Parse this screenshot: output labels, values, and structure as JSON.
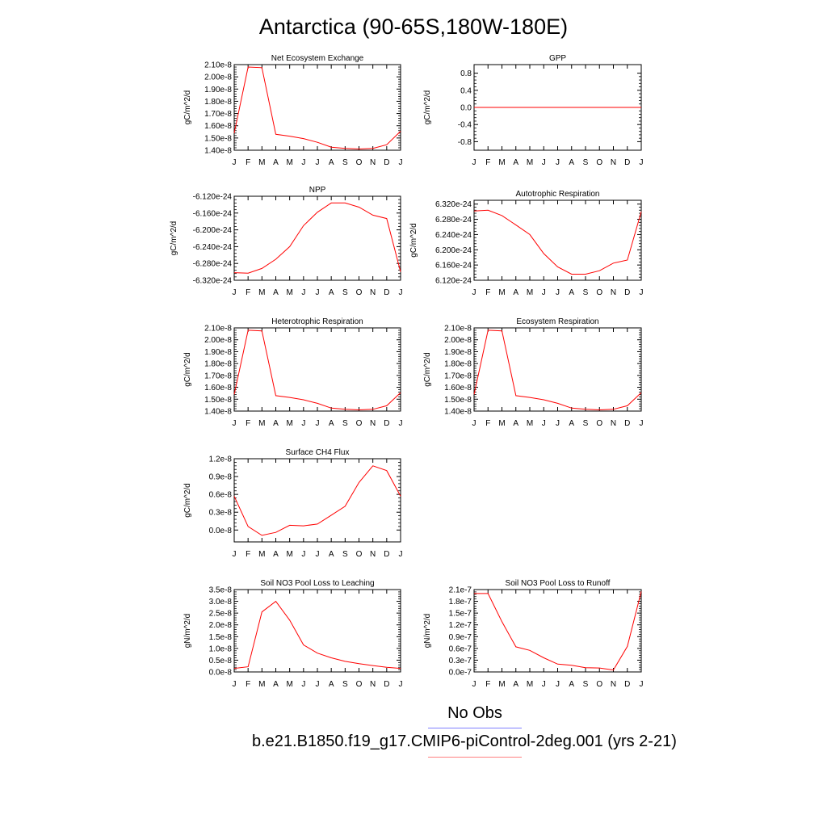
{
  "figure": {
    "title": "Antarctica (90-65S,180W-180E)",
    "line_color": "#ff0000",
    "legend": {
      "obs_label": "No Obs",
      "obs_color": "#8080ff",
      "case_label": "b.e21.B1850.f19_g17.CMIP6-piControl-2deg.001 (yrs 2-21)",
      "case_color": "#ff8080"
    }
  },
  "chart_data": [
    {
      "type": "line",
      "title": "Net Ecosystem Exchange",
      "ylabel": "gC/m^2/d",
      "categories": [
        "J",
        "F",
        "M",
        "A",
        "M",
        "J",
        "J",
        "A",
        "S",
        "O",
        "N",
        "D",
        "J"
      ],
      "ylim": [
        1.4e-08,
        2.1e-08
      ],
      "yticks": [
        1.4e-08,
        1.5e-08,
        1.6e-08,
        1.7e-08,
        1.8e-08,
        1.9e-08,
        2e-08,
        2.1e-08
      ],
      "yticklabels": [
        "1.40e-8",
        "1.50e-8",
        "1.60e-8",
        "1.70e-8",
        "1.80e-8",
        "1.90e-8",
        "2.00e-8",
        "2.10e-8"
      ],
      "values": [
        1.54e-08,
        2.08e-08,
        2.075e-08,
        1.53e-08,
        1.515e-08,
        1.495e-08,
        1.465e-08,
        1.425e-08,
        1.415e-08,
        1.41e-08,
        1.415e-08,
        1.445e-08,
        1.555e-08
      ]
    },
    {
      "type": "line",
      "title": "GPP",
      "ylabel": "gC/m^2/d",
      "categories": [
        "J",
        "F",
        "M",
        "A",
        "M",
        "J",
        "J",
        "A",
        "S",
        "O",
        "N",
        "D",
        "J"
      ],
      "ylim": [
        -1.0,
        1.0
      ],
      "yticks": [
        -0.8,
        -0.4,
        0.0,
        0.4,
        0.8
      ],
      "yticklabels": [
        "-0.8",
        "-0.4",
        "0.0",
        "0.4",
        "0.8"
      ],
      "values": [
        0,
        0,
        0,
        0,
        0,
        0,
        0,
        0,
        0,
        0,
        0,
        0,
        0
      ]
    },
    {
      "type": "line",
      "title": "NPP",
      "ylabel": "gC/m^2/d",
      "categories": [
        "J",
        "F",
        "M",
        "A",
        "M",
        "J",
        "J",
        "A",
        "S",
        "O",
        "N",
        "D",
        "J"
      ],
      "ylim": [
        -6.32e-24,
        -6.12e-24
      ],
      "yticks": [
        -6.32e-24,
        -6.28e-24,
        -6.24e-24,
        -6.2e-24,
        -6.16e-24,
        -6.12e-24
      ],
      "yticklabels": [
        "-6.320e-24",
        "-6.280e-24",
        "-6.240e-24",
        "-6.200e-24",
        "-6.160e-24",
        "-6.120e-24"
      ],
      "values": [
        -6.302e-24,
        -6.303e-24,
        -6.292e-24,
        -6.27e-24,
        -6.24e-24,
        -6.19e-24,
        -6.158e-24,
        -6.136e-24,
        -6.136e-24,
        -6.146e-24,
        -6.165e-24,
        -6.173e-24,
        -6.3e-24
      ]
    },
    {
      "type": "line",
      "title": "Autotrophic Respiration",
      "ylabel": "gC/m^2/d",
      "categories": [
        "J",
        "F",
        "M",
        "A",
        "M",
        "J",
        "J",
        "A",
        "S",
        "O",
        "N",
        "D",
        "J"
      ],
      "ylim": [
        6.12e-24,
        6.33e-24
      ],
      "yticks": [
        6.12e-24,
        6.16e-24,
        6.2e-24,
        6.24e-24,
        6.28e-24,
        6.32e-24
      ],
      "yticklabels": [
        "6.120e-24",
        "6.160e-24",
        "6.200e-24",
        "6.240e-24",
        "6.280e-24",
        "6.320e-24"
      ],
      "values": [
        6.302e-24,
        6.304e-24,
        6.29e-24,
        6.265e-24,
        6.24e-24,
        6.19e-24,
        6.155e-24,
        6.136e-24,
        6.136e-24,
        6.145e-24,
        6.165e-24,
        6.173e-24,
        6.3e-24
      ]
    },
    {
      "type": "line",
      "title": "Heterotrophic Respiration",
      "ylabel": "gC/m^2/d",
      "categories": [
        "J",
        "F",
        "M",
        "A",
        "M",
        "J",
        "J",
        "A",
        "S",
        "O",
        "N",
        "D",
        "J"
      ],
      "ylim": [
        1.4e-08,
        2.1e-08
      ],
      "yticks": [
        1.4e-08,
        1.5e-08,
        1.6e-08,
        1.7e-08,
        1.8e-08,
        1.9e-08,
        2e-08,
        2.1e-08
      ],
      "yticklabels": [
        "1.40e-8",
        "1.50e-8",
        "1.60e-8",
        "1.70e-8",
        "1.80e-8",
        "1.90e-8",
        "2.00e-8",
        "2.10e-8"
      ],
      "values": [
        1.54e-08,
        2.08e-08,
        2.075e-08,
        1.53e-08,
        1.515e-08,
        1.495e-08,
        1.465e-08,
        1.425e-08,
        1.415e-08,
        1.41e-08,
        1.415e-08,
        1.445e-08,
        1.555e-08
      ]
    },
    {
      "type": "line",
      "title": "Ecosystem Respiration",
      "ylabel": "gC/m^2/d",
      "categories": [
        "J",
        "F",
        "M",
        "A",
        "M",
        "J",
        "J",
        "A",
        "S",
        "O",
        "N",
        "D",
        "J"
      ],
      "ylim": [
        1.4e-08,
        2.1e-08
      ],
      "yticks": [
        1.4e-08,
        1.5e-08,
        1.6e-08,
        1.7e-08,
        1.8e-08,
        1.9e-08,
        2e-08,
        2.1e-08
      ],
      "yticklabels": [
        "1.40e-8",
        "1.50e-8",
        "1.60e-8",
        "1.70e-8",
        "1.80e-8",
        "1.90e-8",
        "2.00e-8",
        "2.10e-8"
      ],
      "values": [
        1.54e-08,
        2.08e-08,
        2.075e-08,
        1.53e-08,
        1.515e-08,
        1.495e-08,
        1.465e-08,
        1.425e-08,
        1.415e-08,
        1.41e-08,
        1.415e-08,
        1.445e-08,
        1.555e-08
      ]
    },
    {
      "type": "line",
      "title": "Surface CH4 Flux",
      "ylabel": "gC/m^2/d",
      "categories": [
        "J",
        "F",
        "M",
        "A",
        "M",
        "J",
        "J",
        "A",
        "S",
        "O",
        "N",
        "D",
        "J"
      ],
      "ylim": [
        -2e-09,
        1.2e-08
      ],
      "yticks": [
        0.0,
        3e-09,
        6e-09,
        9e-09,
        1.2e-08
      ],
      "yticklabels": [
        "0.0e-8",
        "0.3e-8",
        "0.6e-8",
        "0.9e-8",
        "1.2e-8"
      ],
      "values": [
        5.7e-09,
        6e-10,
        -9e-10,
        -4e-10,
        8e-10,
        7e-10,
        1e-09,
        2.5e-09,
        4e-09,
        8e-09,
        1.08e-08,
        1e-08,
        5.7e-09
      ]
    },
    {
      "type": "line",
      "title": "Soil NO3 Pool Loss to Leaching",
      "ylabel": "gN/m^2/d",
      "categories": [
        "J",
        "F",
        "M",
        "A",
        "M",
        "J",
        "J",
        "A",
        "S",
        "O",
        "N",
        "D",
        "J"
      ],
      "ylim": [
        0.0,
        3.5e-08
      ],
      "yticks": [
        0.0,
        5e-09,
        1e-08,
        1.5e-08,
        2e-08,
        2.5e-08,
        3e-08,
        3.5e-08
      ],
      "yticklabels": [
        "0.0e-8",
        "0.5e-8",
        "1.0e-8",
        "1.5e-8",
        "2.0e-8",
        "2.5e-8",
        "3.0e-8",
        "3.5e-8"
      ],
      "values": [
        1.5e-09,
        2.2e-09,
        2.55e-08,
        3e-08,
        2.2e-08,
        1.15e-08,
        8e-09,
        6e-09,
        4.5e-09,
        3.5e-09,
        2.7e-09,
        2e-09,
        1.5e-09
      ]
    },
    {
      "type": "line",
      "title": "Soil NO3 Pool Loss to Runoff",
      "ylabel": "gN/m^2/d",
      "categories": [
        "J",
        "F",
        "M",
        "A",
        "M",
        "J",
        "J",
        "A",
        "S",
        "O",
        "N",
        "D",
        "J"
      ],
      "ylim": [
        0.0,
        2.1e-07
      ],
      "yticks": [
        0.0,
        3e-08,
        6e-08,
        9e-08,
        1.2e-07,
        1.5e-07,
        1.8e-07,
        2.1e-07
      ],
      "yticklabels": [
        "0.0e-7",
        "0.3e-7",
        "0.6e-7",
        "0.9e-7",
        "1.2e-7",
        "1.5e-7",
        "1.8e-7",
        "2.1e-7"
      ],
      "values": [
        2e-07,
        2e-07,
        1.28e-07,
        6.4e-08,
        5.5e-08,
        3.6e-08,
        2e-08,
        1.7e-08,
        1.1e-08,
        1e-08,
        5e-09,
        6.5e-08,
        2.05e-07
      ]
    }
  ]
}
